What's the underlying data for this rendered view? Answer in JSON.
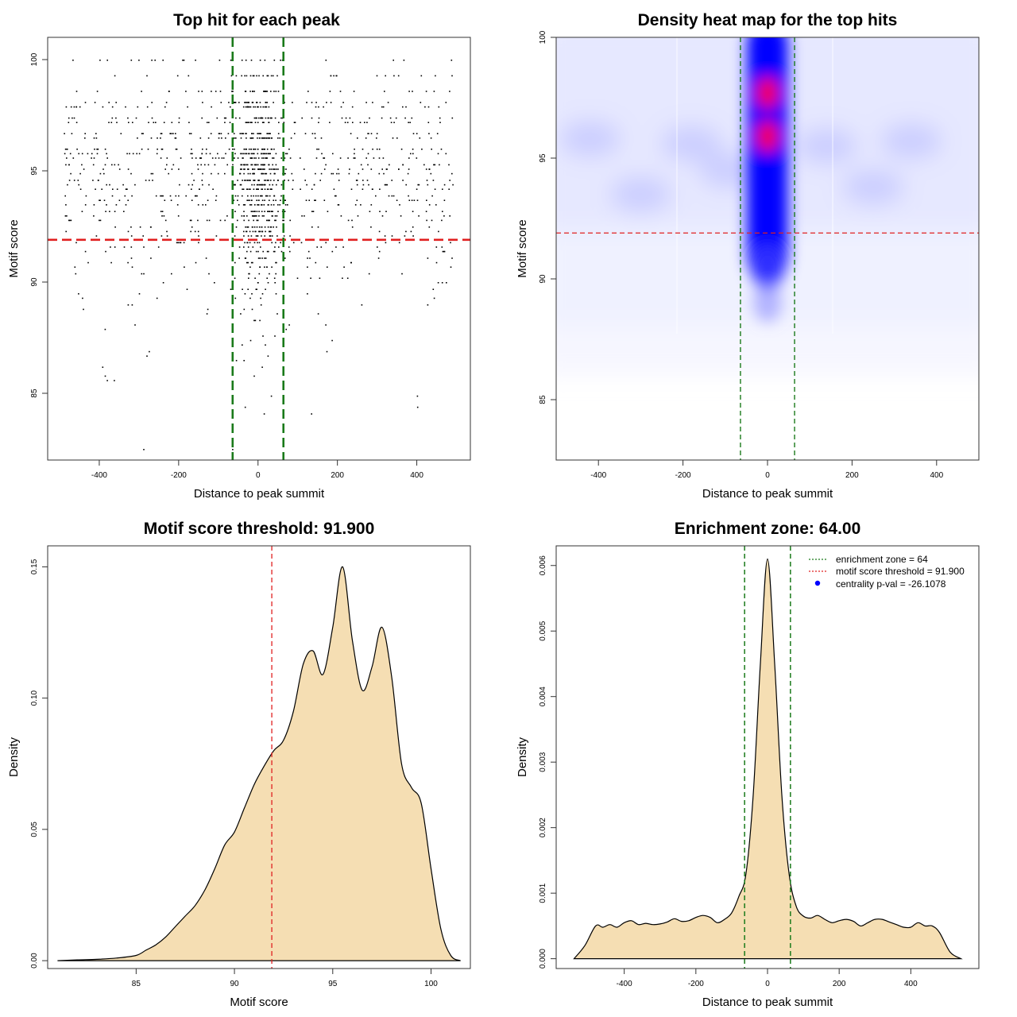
{
  "chart_data": [
    {
      "type": "scatter",
      "title": "Top hit for each peak",
      "xlabel": "Distance to peak summit",
      "ylabel": "Motif score",
      "xlim": [
        -530,
        535
      ],
      "ylim": [
        82,
        101
      ],
      "xticks": [
        -400,
        -200,
        0,
        200,
        400
      ],
      "yticks": [
        85,
        90,
        95,
        100
      ],
      "xtick_labels": [
        "-400",
        "-200",
        "0",
        "200",
        "400"
      ],
      "ytick_labels": [
        "85",
        "90",
        "95",
        "100"
      ],
      "point_color": "#000000",
      "score_levels": [
        100,
        99.3,
        98.6,
        98.1,
        97.9,
        97.4,
        97.2,
        96.7,
        96.5,
        96.0,
        95.8,
        95.6,
        95.3,
        95.1,
        94.9,
        94.6,
        94.4,
        94.2,
        93.9,
        93.7,
        93.5,
        93.2,
        93.0,
        92.8,
        92.5,
        92.3,
        92.1,
        91.8,
        91.6,
        91.4,
        91.1,
        90.9,
        90.7,
        90.4,
        90.2,
        90.0,
        89.7,
        89.5,
        89.3,
        89.0,
        88.8,
        88.6,
        88.3,
        88.1,
        87.9,
        87.6,
        87.4,
        87.2,
        86.9,
        86.7,
        86.5,
        86.2,
        85.8,
        85.6,
        84.9,
        84.4,
        84.1,
        82.5
      ],
      "threshold": {
        "value": 91.9,
        "color": "#e02020"
      },
      "enrichment_zone": {
        "lower": -64,
        "upper": 64,
        "color": "#1a7a1a"
      }
    },
    {
      "type": "heatmap",
      "title": "Density heat map for the top hits",
      "xlabel": "Distance to peak summit",
      "ylabel": "Motif score",
      "xlim": [
        -500,
        500
      ],
      "ylim": [
        82.5,
        100
      ],
      "xticks": [
        -400,
        -200,
        0,
        200,
        400
      ],
      "yticks": [
        85,
        90,
        95,
        100
      ],
      "xtick_labels": [
        "-400",
        "-200",
        "0",
        "200",
        "400"
      ],
      "ytick_labels": [
        "85",
        "90",
        "95",
        "100"
      ],
      "colors": {
        "low": "#ffffff",
        "mid": "#0000ff",
        "high": "#ff0000"
      },
      "hotspots": [
        {
          "x": 0,
          "y": 97.7,
          "intensity": "high"
        },
        {
          "x": 0,
          "y": 95.9,
          "intensity": "high"
        }
      ],
      "threshold": {
        "value": 91.9,
        "color": "#e02020"
      },
      "enrichment_zone": {
        "lower": -64,
        "upper": 64,
        "color": "#1a7a1a"
      }
    },
    {
      "type": "area",
      "title": "Motif score threshold: 91.900",
      "xlabel": "Motif score",
      "ylabel": "Density",
      "xlim": [
        80.5,
        102
      ],
      "ylim": [
        -0.003,
        0.158
      ],
      "xticks": [
        85,
        90,
        95,
        100
      ],
      "yticks": [
        0.0,
        0.05,
        0.1,
        0.15
      ],
      "xtick_labels": [
        "85",
        "90",
        "95",
        "100"
      ],
      "ytick_labels": [
        "0.00",
        "0.05",
        "0.10",
        "0.15"
      ],
      "fill": "#f5deb3",
      "x": [
        81.0,
        82.0,
        83.0,
        84.0,
        85.0,
        85.5,
        86.0,
        86.5,
        87.0,
        87.5,
        88.0,
        88.5,
        89.0,
        89.5,
        90.0,
        90.5,
        91.0,
        91.5,
        92.0,
        92.5,
        93.0,
        93.5,
        94.0,
        94.5,
        95.0,
        95.5,
        96.0,
        96.5,
        97.0,
        97.5,
        98.0,
        98.5,
        99.0,
        99.5,
        100.0,
        100.5,
        101.0,
        101.5
      ],
      "values": [
        0.0,
        0.0003,
        0.0005,
        0.001,
        0.002,
        0.004,
        0.006,
        0.009,
        0.013,
        0.017,
        0.021,
        0.027,
        0.035,
        0.044,
        0.049,
        0.058,
        0.067,
        0.074,
        0.08,
        0.084,
        0.095,
        0.113,
        0.118,
        0.109,
        0.127,
        0.15,
        0.122,
        0.103,
        0.112,
        0.127,
        0.108,
        0.075,
        0.066,
        0.06,
        0.035,
        0.012,
        0.002,
        0.0
      ],
      "threshold": {
        "value": 91.9,
        "color": "#e02020"
      }
    },
    {
      "type": "area",
      "title": "Enrichment zone: 64.00",
      "xlabel": "Distance to peak summit",
      "ylabel": "Density",
      "xlim": [
        -590,
        590
      ],
      "ylim": [
        -0.00015,
        0.0063
      ],
      "xticks": [
        -400,
        -200,
        0,
        200,
        400
      ],
      "yticks": [
        0.0,
        0.001,
        0.002,
        0.003,
        0.004,
        0.005,
        0.006
      ],
      "xtick_labels": [
        "-400",
        "-200",
        "0",
        "200",
        "400"
      ],
      "ytick_labels": [
        "0.000",
        "0.001",
        "0.002",
        "0.003",
        "0.004",
        "0.005",
        "0.006"
      ],
      "fill": "#f5deb3",
      "x": [
        -540,
        -510,
        -480,
        -460,
        -440,
        -420,
        -400,
        -380,
        -360,
        -340,
        -320,
        -300,
        -280,
        -260,
        -240,
        -220,
        -200,
        -180,
        -160,
        -140,
        -120,
        -100,
        -80,
        -60,
        -40,
        -20,
        0,
        20,
        40,
        60,
        80,
        100,
        120,
        140,
        160,
        180,
        200,
        220,
        240,
        260,
        280,
        300,
        320,
        340,
        360,
        380,
        400,
        420,
        440,
        460,
        480,
        510,
        540
      ],
      "values": [
        0.0,
        0.0002,
        0.0005,
        0.00048,
        0.00052,
        0.00048,
        0.00055,
        0.00058,
        0.00052,
        0.00054,
        0.00052,
        0.00053,
        0.00056,
        0.00061,
        0.00057,
        0.00058,
        0.00063,
        0.00066,
        0.00063,
        0.00055,
        0.0006,
        0.0007,
        0.00095,
        0.0013,
        0.0025,
        0.0045,
        0.0061,
        0.0045,
        0.0025,
        0.0013,
        0.0008,
        0.00065,
        0.00062,
        0.00066,
        0.0006,
        0.00055,
        0.00058,
        0.0006,
        0.00057,
        0.0005,
        0.00055,
        0.0006,
        0.0006,
        0.00056,
        0.00052,
        0.00048,
        0.00048,
        0.00055,
        0.0005,
        0.0005,
        0.0004,
        0.0001,
        0.0
      ],
      "enrichment_zone": {
        "lower": -64,
        "upper": 64,
        "color": "#1a7a1a"
      },
      "legend": {
        "placement": "top-right",
        "entries": [
          {
            "label": "enrichment zone = 64",
            "style": "dotted",
            "color": "#1a7a1a"
          },
          {
            "label": "motif score threshold = 91.900",
            "style": "dotted",
            "color": "#e02020"
          },
          {
            "label": "centrality p-val = -26.1078",
            "style": "point",
            "color": "#0000ff"
          }
        ]
      }
    }
  ]
}
